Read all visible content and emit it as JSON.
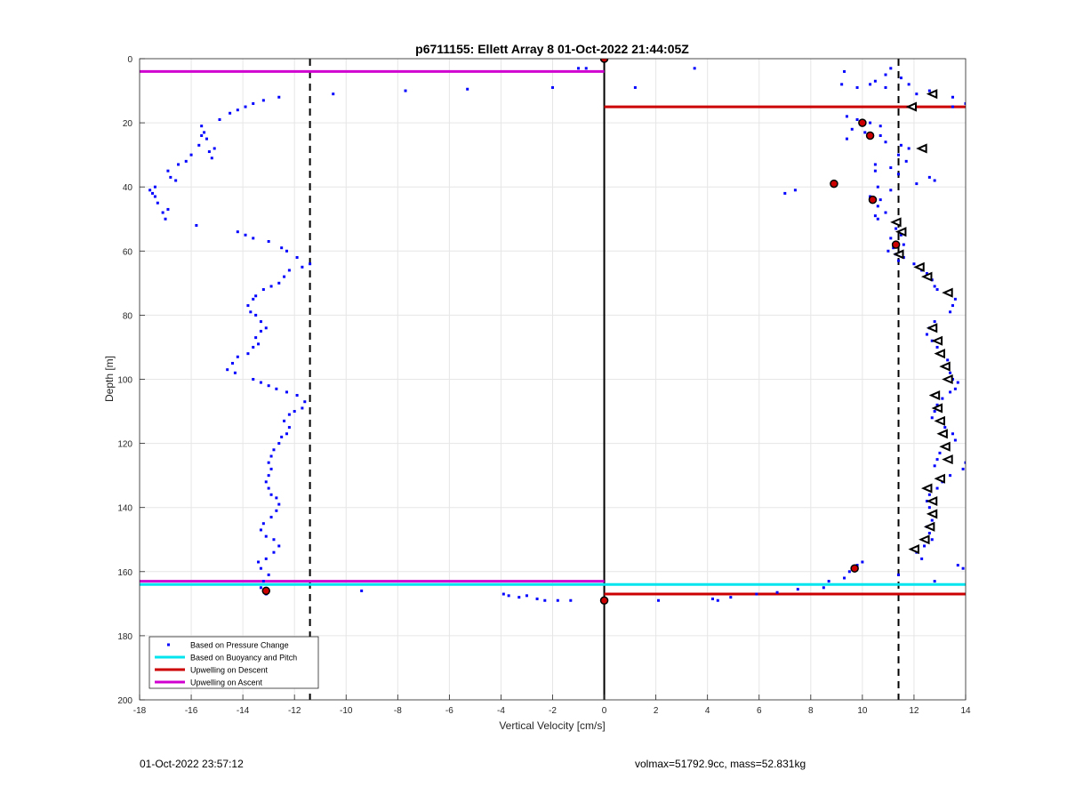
{
  "footer": {
    "timestamp": "01-Oct-2022 23:57:12",
    "summary": "volmax=51792.9cc, mass=52.831kg"
  },
  "chart_data": {
    "type": "scatter",
    "title": "p6711155: Ellett Array 8 01-Oct-2022 21:44:05Z",
    "xlabel": "Vertical Velocity [cm/s]",
    "ylabel": "Depth [m]",
    "xlim": [
      -18,
      14
    ],
    "ylim": [
      0,
      200
    ],
    "y_reversed": true,
    "grid": true,
    "x_ticks": [
      -18,
      -16,
      -14,
      -12,
      -10,
      -8,
      -6,
      -4,
      -2,
      0,
      2,
      4,
      6,
      8,
      10,
      12,
      14
    ],
    "y_ticks": [
      0,
      20,
      40,
      60,
      80,
      100,
      120,
      140,
      160,
      180,
      200
    ],
    "legend_position": "bottom-left",
    "legend": [
      {
        "label": "Based on Pressure Change",
        "color": "#0000ff",
        "marker": "dot"
      },
      {
        "label": "Based on Buoyancy and Pitch",
        "color": "#00e5ee",
        "marker": "line"
      },
      {
        "label": "Upwelling on Descent",
        "color": "#cc0000",
        "marker": "line"
      },
      {
        "label": "Upwelling on Ascent",
        "color": "#d000d0",
        "marker": "line"
      }
    ],
    "dashed_vlines": [
      -11.4,
      11.4
    ],
    "zero_line": 0,
    "horizontal_lines": [
      {
        "series": "Upwelling on Ascent",
        "color": "#d000d0",
        "y": 4,
        "x": [
          -18,
          0
        ]
      },
      {
        "series": "Upwelling on Descent",
        "color": "#cc0000",
        "y": 15,
        "x": [
          0,
          14
        ]
      },
      {
        "series": "Upwelling on Ascent",
        "color": "#d000d0",
        "y": 163,
        "x": [
          -18,
          0
        ]
      },
      {
        "series": "Based on Buoyancy and Pitch",
        "color": "#00e5ee",
        "y": 164,
        "x": [
          -18,
          0
        ]
      },
      {
        "series": "Based on Buoyancy and Pitch",
        "color": "#00e5ee",
        "y": 164,
        "x": [
          0,
          14
        ]
      },
      {
        "series": "Upwelling on Descent",
        "color": "#cc0000",
        "y": 167,
        "x": [
          0,
          14
        ]
      }
    ],
    "series": [
      {
        "name": "Based on Pressure Change",
        "color": "#0000ff",
        "points": [
          [
            -17.6,
            41
          ],
          [
            -17.5,
            42
          ],
          [
            -17.4,
            43
          ],
          [
            -17.3,
            45
          ],
          [
            -17.4,
            40
          ],
          [
            -17.1,
            48
          ],
          [
            -17.0,
            50
          ],
          [
            -16.9,
            47
          ],
          [
            -16.9,
            35
          ],
          [
            -16.8,
            37
          ],
          [
            -16.6,
            38
          ],
          [
            -16.5,
            33
          ],
          [
            -16.2,
            32
          ],
          [
            -16.0,
            30
          ],
          [
            -15.7,
            27
          ],
          [
            -15.6,
            24
          ],
          [
            -15.6,
            21
          ],
          [
            -15.5,
            23
          ],
          [
            -15.4,
            25
          ],
          [
            -15.3,
            29
          ],
          [
            -15.2,
            31
          ],
          [
            -15.1,
            28
          ],
          [
            -14.9,
            19
          ],
          [
            -14.5,
            17
          ],
          [
            -14.2,
            16
          ],
          [
            -13.9,
            15
          ],
          [
            -13.6,
            14
          ],
          [
            -13.2,
            13
          ],
          [
            -12.6,
            12
          ],
          [
            -15.8,
            52
          ],
          [
            -14.2,
            54
          ],
          [
            -13.9,
            55
          ],
          [
            -13.6,
            56
          ],
          [
            -13.0,
            57
          ],
          [
            -12.5,
            59
          ],
          [
            -12.3,
            60
          ],
          [
            -11.9,
            62
          ],
          [
            -11.4,
            64
          ],
          [
            -11.7,
            65
          ],
          [
            -12.2,
            66
          ],
          [
            -12.4,
            68
          ],
          [
            -12.6,
            70
          ],
          [
            -12.9,
            71
          ],
          [
            -13.2,
            72
          ],
          [
            -13.5,
            74
          ],
          [
            -13.6,
            75
          ],
          [
            -13.8,
            77
          ],
          [
            -13.7,
            79
          ],
          [
            -13.5,
            80
          ],
          [
            -13.3,
            82
          ],
          [
            -13.1,
            84
          ],
          [
            -13.3,
            85
          ],
          [
            -13.5,
            87
          ],
          [
            -13.4,
            89
          ],
          [
            -13.6,
            90
          ],
          [
            -13.8,
            92
          ],
          [
            -14.2,
            93
          ],
          [
            -14.4,
            95
          ],
          [
            -14.6,
            97
          ],
          [
            -14.3,
            98
          ],
          [
            -13.6,
            100
          ],
          [
            -13.3,
            101
          ],
          [
            -13.0,
            102
          ],
          [
            -12.7,
            103
          ],
          [
            -12.3,
            104
          ],
          [
            -11.9,
            105
          ],
          [
            -11.6,
            107
          ],
          [
            -11.7,
            109
          ],
          [
            -12.0,
            110
          ],
          [
            -12.2,
            111
          ],
          [
            -12.4,
            113
          ],
          [
            -12.2,
            115
          ],
          [
            -12.3,
            117
          ],
          [
            -12.5,
            118
          ],
          [
            -12.6,
            120
          ],
          [
            -12.8,
            122
          ],
          [
            -12.9,
            124
          ],
          [
            -13.0,
            126
          ],
          [
            -12.9,
            128
          ],
          [
            -13.0,
            130
          ],
          [
            -13.1,
            132
          ],
          [
            -13.0,
            134
          ],
          [
            -12.9,
            136
          ],
          [
            -12.7,
            137
          ],
          [
            -12.6,
            139
          ],
          [
            -12.7,
            141
          ],
          [
            -12.9,
            143
          ],
          [
            -13.2,
            145
          ],
          [
            -13.3,
            147
          ],
          [
            -13.1,
            149
          ],
          [
            -12.8,
            150
          ],
          [
            -12.6,
            152
          ],
          [
            -12.8,
            154
          ],
          [
            -13.1,
            156
          ],
          [
            -13.4,
            157
          ],
          [
            -13.3,
            159
          ],
          [
            -13.0,
            161
          ],
          [
            -13.2,
            163
          ],
          [
            -13.3,
            165
          ],
          [
            -13.1,
            167
          ],
          [
            -10.5,
            11
          ],
          [
            -7.7,
            10
          ],
          [
            -5.3,
            9.5
          ],
          [
            -2.0,
            9
          ],
          [
            -1.0,
            3
          ],
          [
            -0.7,
            3
          ],
          [
            -9.4,
            166
          ],
          [
            -3.9,
            167
          ],
          [
            -3.7,
            167.5
          ],
          [
            -3.3,
            168
          ],
          [
            -3.0,
            167.5
          ],
          [
            -2.6,
            168.5
          ],
          [
            -2.3,
            169
          ],
          [
            -1.8,
            169
          ],
          [
            -1.3,
            169
          ],
          [
            1.2,
            9
          ],
          [
            3.5,
            3
          ],
          [
            2.1,
            169
          ],
          [
            4.2,
            168.5
          ],
          [
            4.4,
            169
          ],
          [
            4.9,
            168
          ],
          [
            5.9,
            167
          ],
          [
            6.7,
            166.5
          ],
          [
            7.5,
            165.5
          ],
          [
            8.5,
            165
          ],
          [
            8.7,
            163
          ],
          [
            9.3,
            162
          ],
          [
            9.5,
            160
          ],
          [
            9.8,
            158
          ],
          [
            10.0,
            157
          ],
          [
            9.3,
            4
          ],
          [
            9.2,
            8
          ],
          [
            9.8,
            9
          ],
          [
            10.3,
            8
          ],
          [
            10.5,
            7
          ],
          [
            10.9,
            9
          ],
          [
            10.9,
            5
          ],
          [
            11.1,
            3
          ],
          [
            11.5,
            6
          ],
          [
            11.8,
            8
          ],
          [
            12.1,
            11
          ],
          [
            12.6,
            10
          ],
          [
            13.5,
            12
          ],
          [
            14.0,
            14
          ],
          [
            13.5,
            15
          ],
          [
            14.1,
            20
          ],
          [
            9.4,
            18
          ],
          [
            9.8,
            19
          ],
          [
            10.3,
            20
          ],
          [
            10.7,
            21
          ],
          [
            9.6,
            22
          ],
          [
            10.1,
            23
          ],
          [
            10.7,
            24
          ],
          [
            9.4,
            25
          ],
          [
            10.9,
            26
          ],
          [
            11.5,
            27
          ],
          [
            11.8,
            28
          ],
          [
            11.4,
            30
          ],
          [
            11.7,
            32
          ],
          [
            10.5,
            33
          ],
          [
            11.1,
            34
          ],
          [
            10.5,
            35
          ],
          [
            11.4,
            36
          ],
          [
            12.6,
            37
          ],
          [
            12.8,
            38
          ],
          [
            12.1,
            39
          ],
          [
            10.6,
            40
          ],
          [
            7.4,
            41
          ],
          [
            11.1,
            41
          ],
          [
            7.0,
            42
          ],
          [
            10.3,
            43
          ],
          [
            10.7,
            44
          ],
          [
            10.6,
            46
          ],
          [
            10.9,
            48
          ],
          [
            10.5,
            49
          ],
          [
            10.6,
            50
          ],
          [
            11.3,
            53
          ],
          [
            11.5,
            55
          ],
          [
            11.1,
            56
          ],
          [
            11.6,
            58
          ],
          [
            11.2,
            59
          ],
          [
            11.0,
            60
          ],
          [
            11.3,
            61
          ],
          [
            11.6,
            62
          ],
          [
            11.4,
            63
          ],
          [
            12.0,
            64
          ],
          [
            12.3,
            66
          ],
          [
            12.5,
            67
          ],
          [
            12.7,
            69
          ],
          [
            12.8,
            71
          ],
          [
            12.9,
            72
          ],
          [
            13.3,
            73
          ],
          [
            13.6,
            75
          ],
          [
            13.5,
            77
          ],
          [
            13.4,
            79
          ],
          [
            12.8,
            82
          ],
          [
            12.6,
            84
          ],
          [
            12.5,
            86
          ],
          [
            12.7,
            88
          ],
          [
            12.9,
            90
          ],
          [
            13.1,
            92
          ],
          [
            13.3,
            94
          ],
          [
            13.2,
            96
          ],
          [
            13.4,
            98
          ],
          [
            13.5,
            100
          ],
          [
            13.7,
            101
          ],
          [
            13.6,
            103
          ],
          [
            13.4,
            104
          ],
          [
            13.1,
            106
          ],
          [
            12.9,
            108
          ],
          [
            12.8,
            110
          ],
          [
            12.7,
            112
          ],
          [
            13.0,
            113
          ],
          [
            13.2,
            115
          ],
          [
            13.5,
            117
          ],
          [
            13.6,
            119
          ],
          [
            13.3,
            121
          ],
          [
            13.0,
            123
          ],
          [
            12.9,
            125
          ],
          [
            12.8,
            127
          ],
          [
            14.0,
            126
          ],
          [
            13.9,
            128
          ],
          [
            13.4,
            130
          ],
          [
            13.1,
            132
          ],
          [
            12.9,
            134
          ],
          [
            12.6,
            136
          ],
          [
            12.5,
            138
          ],
          [
            12.6,
            140
          ],
          [
            12.8,
            142
          ],
          [
            12.7,
            144
          ],
          [
            12.5,
            146
          ],
          [
            12.6,
            148
          ],
          [
            12.7,
            150
          ],
          [
            12.4,
            152
          ],
          [
            12.1,
            154
          ],
          [
            12.3,
            156
          ],
          [
            13.7,
            158
          ],
          [
            13.9,
            159
          ],
          [
            11.4,
            161
          ],
          [
            12.8,
            163
          ]
        ]
      },
      {
        "name": "Based on Buoyancy and Pitch",
        "color": "#000000",
        "marker": "triangle",
        "points": [
          [
            12.7,
            11
          ],
          [
            11.9,
            15
          ],
          [
            12.3,
            28
          ],
          [
            11.3,
            51
          ],
          [
            11.5,
            54
          ],
          [
            11.4,
            61
          ],
          [
            12.2,
            65
          ],
          [
            12.5,
            68
          ],
          [
            13.3,
            73
          ],
          [
            12.7,
            84
          ],
          [
            12.9,
            88
          ],
          [
            13.0,
            92
          ],
          [
            13.2,
            96
          ],
          [
            13.3,
            100
          ],
          [
            12.8,
            105
          ],
          [
            12.9,
            109
          ],
          [
            13.0,
            113
          ],
          [
            13.1,
            117
          ],
          [
            13.2,
            121
          ],
          [
            13.3,
            125
          ],
          [
            13.0,
            131
          ],
          [
            12.5,
            134
          ],
          [
            12.7,
            138
          ],
          [
            12.7,
            142
          ],
          [
            12.6,
            146
          ],
          [
            12.4,
            150
          ],
          [
            12.0,
            153
          ]
        ]
      },
      {
        "name": "Upwelling on Descent",
        "color": "#cc0000",
        "marker": "circle",
        "points": [
          [
            0,
            0
          ],
          [
            10.0,
            20
          ],
          [
            10.3,
            24
          ],
          [
            8.9,
            39
          ],
          [
            10.4,
            44
          ],
          [
            11.3,
            58
          ],
          [
            9.7,
            159
          ],
          [
            -13.1,
            166
          ],
          [
            0,
            169
          ]
        ]
      }
    ]
  }
}
